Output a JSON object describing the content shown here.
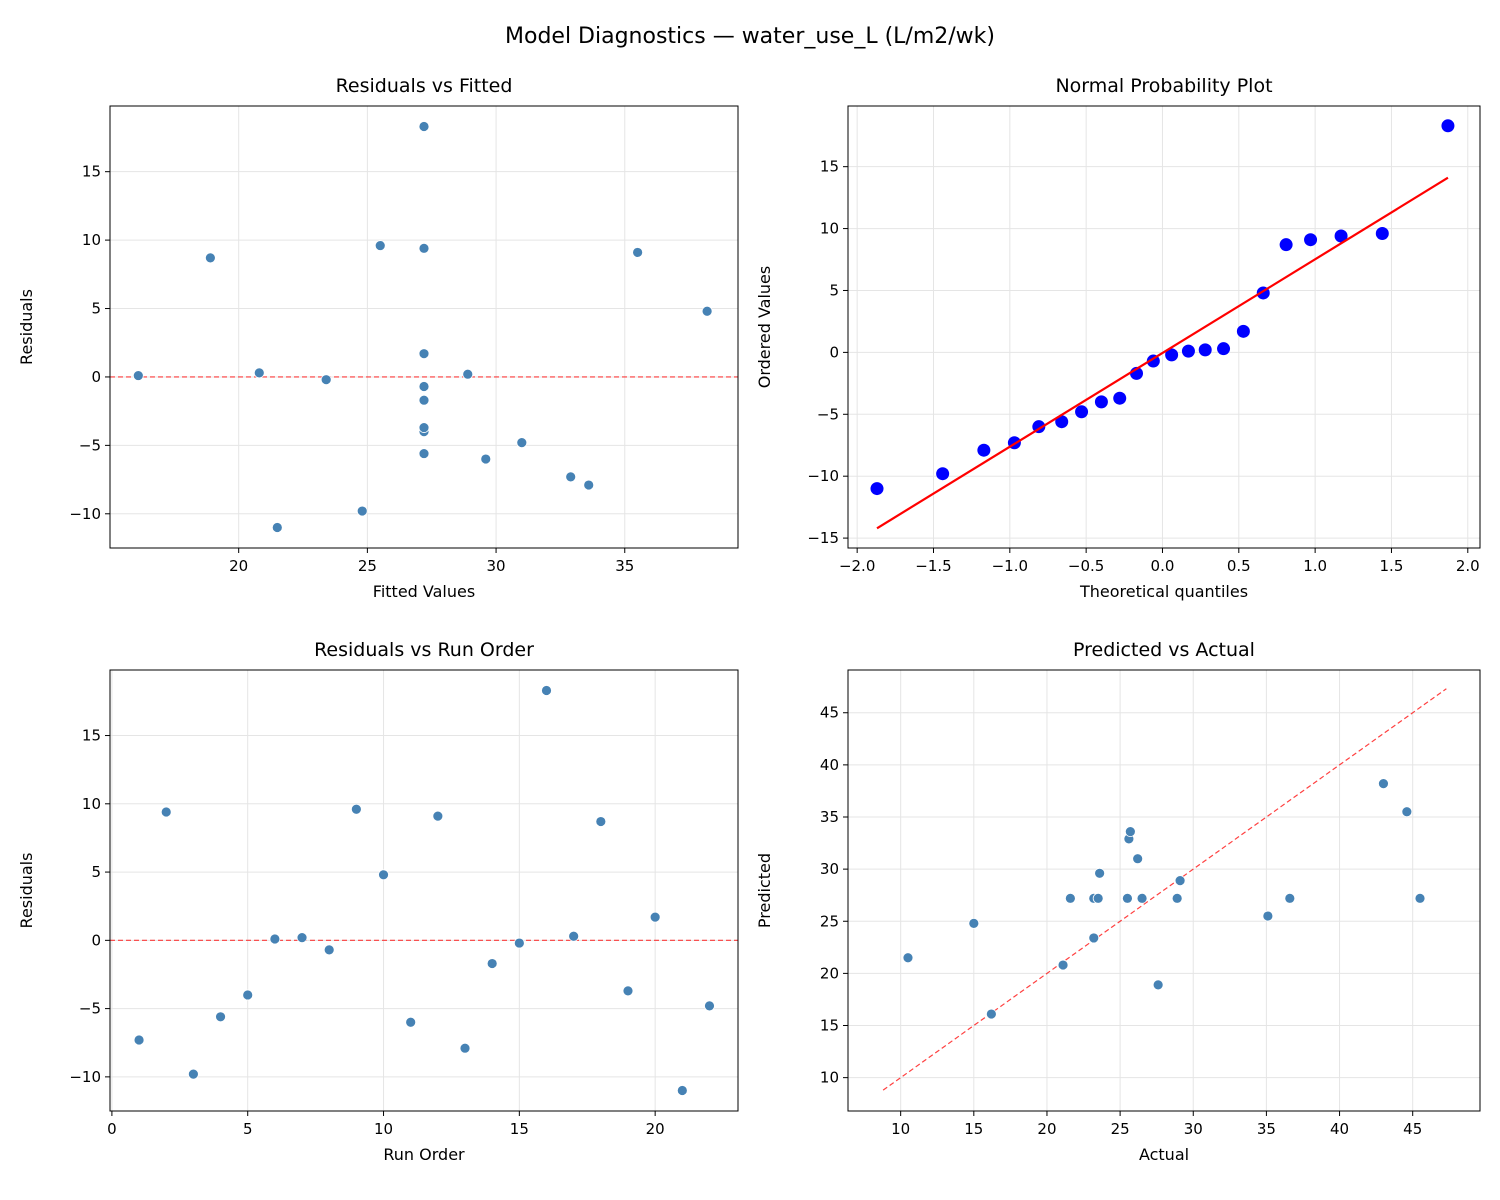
{
  "suptitle": "Model Diagnostics — water_use_L (L/m2/wk)",
  "colors": {
    "points": "#4682b4",
    "qq_points": "#0000ff",
    "qq_line": "#ff0000",
    "ref_line": "#ff0000",
    "grid": "#e5e5e5"
  },
  "chart_data": [
    {
      "type": "scatter",
      "title": "Residuals vs Fitted",
      "xlabel": "Fitted Values",
      "ylabel": "Residuals",
      "xlim": [
        15.0,
        39.4
      ],
      "ylim": [
        -12.5,
        19.8
      ],
      "xticks": [
        20,
        25,
        30,
        35
      ],
      "yticks": [
        -10,
        -5,
        0,
        5,
        10,
        15
      ],
      "grid": true,
      "reference_line": {
        "type": "horizontal",
        "y": 0,
        "style": "dashed"
      },
      "x": [
        32.9,
        27.2,
        24.8,
        27.2,
        27.2,
        16.1,
        28.9,
        27.2,
        25.5,
        38.2,
        29.6,
        35.5,
        33.6,
        27.2,
        23.4,
        27.2,
        20.8,
        18.9,
        27.2,
        27.2,
        21.5,
        31.0
      ],
      "y": [
        -7.3,
        9.4,
        -9.8,
        -5.6,
        -4.0,
        0.1,
        0.2,
        -0.7,
        9.6,
        4.8,
        -6.0,
        9.1,
        -7.9,
        -1.7,
        -0.2,
        18.3,
        0.3,
        8.7,
        -3.7,
        1.7,
        -11.0,
        -4.8
      ]
    },
    {
      "type": "scatter",
      "title": "Normal Probability Plot",
      "xlabel": "Theoretical quantiles",
      "ylabel": "Ordered Values",
      "xlim": [
        -2.06,
        2.08
      ],
      "ylim": [
        -15.8,
        19.9
      ],
      "xticks": [
        -2.0,
        -1.5,
        -1.0,
        -0.5,
        0.0,
        0.5,
        1.0,
        1.5,
        2.0
      ],
      "xtick_labels": [
        "−2.0",
        "−1.5",
        "−1.0",
        "−0.5",
        "0.0",
        "0.5",
        "1.0",
        "1.5",
        "2.0"
      ],
      "yticks": [
        -15,
        -10,
        -5,
        0,
        5,
        10,
        15
      ],
      "grid": true,
      "fit_line": {
        "slope": 7.57,
        "intercept": -0.05
      },
      "x": [
        -1.87,
        -1.44,
        -1.17,
        -0.97,
        -0.81,
        -0.66,
        -0.53,
        -0.4,
        -0.28,
        -0.17,
        -0.06,
        0.06,
        0.17,
        0.28,
        0.4,
        0.53,
        0.66,
        0.81,
        0.97,
        1.17,
        1.44,
        1.87
      ],
      "y": [
        -11.0,
        -9.8,
        -7.9,
        -7.3,
        -6.0,
        -5.6,
        -4.8,
        -4.0,
        -3.7,
        -1.7,
        -0.7,
        -0.2,
        0.1,
        0.2,
        0.3,
        1.7,
        4.8,
        8.7,
        9.1,
        9.4,
        9.6,
        18.3
      ]
    },
    {
      "type": "scatter",
      "title": "Residuals vs Run Order",
      "xlabel": "Run Order",
      "ylabel": "Residuals",
      "xlim": [
        -0.07,
        23.05
      ],
      "ylim": [
        -12.5,
        19.8
      ],
      "xticks": [
        0,
        5,
        10,
        15,
        20
      ],
      "yticks": [
        -10,
        -5,
        0,
        5,
        10,
        15
      ],
      "grid": true,
      "reference_line": {
        "type": "horizontal",
        "y": 0,
        "style": "dashed"
      },
      "x": [
        1,
        2,
        3,
        4,
        5,
        6,
        7,
        8,
        9,
        10,
        11,
        12,
        13,
        14,
        15,
        16,
        17,
        18,
        19,
        20,
        21,
        22
      ],
      "y": [
        -7.3,
        9.4,
        -9.8,
        -5.6,
        -4.0,
        0.1,
        0.2,
        -0.7,
        9.6,
        4.8,
        -6.0,
        9.1,
        -7.9,
        -1.7,
        -0.2,
        18.3,
        0.3,
        8.7,
        -3.7,
        1.7,
        -11.0,
        -4.8
      ]
    },
    {
      "type": "scatter",
      "title": "Predicted vs Actual",
      "xlabel": "Actual",
      "ylabel": "Predicted",
      "xlim": [
        6.4,
        49.6
      ],
      "ylim": [
        6.8,
        49.1
      ],
      "xticks": [
        10,
        15,
        20,
        25,
        30,
        35,
        40,
        45
      ],
      "yticks": [
        10,
        15,
        20,
        25,
        30,
        35,
        40,
        45
      ],
      "grid": true,
      "reference_line": {
        "type": "identity",
        "from": 8.8,
        "to": 47.3,
        "style": "dashed"
      },
      "x": [
        25.6,
        36.6,
        15.0,
        21.6,
        23.2,
        16.2,
        29.1,
        26.5,
        35.1,
        43.0,
        23.6,
        44.6,
        25.7,
        25.5,
        23.2,
        45.5,
        21.1,
        27.6,
        23.5,
        28.9,
        10.5,
        26.2
      ],
      "y": [
        32.9,
        27.2,
        24.8,
        27.2,
        27.2,
        16.1,
        28.9,
        27.2,
        25.5,
        38.2,
        29.6,
        35.5,
        33.6,
        27.2,
        23.4,
        27.2,
        20.8,
        18.9,
        27.2,
        27.2,
        21.5,
        31.0
      ]
    }
  ]
}
